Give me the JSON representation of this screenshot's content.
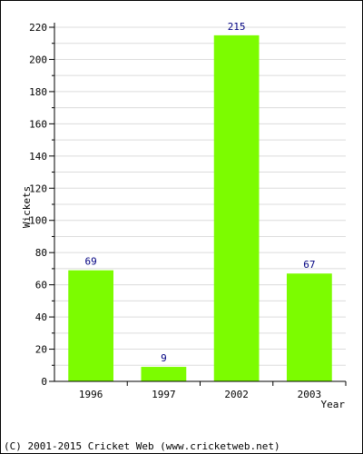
{
  "chart_data": {
    "type": "bar",
    "categories": [
      "1996",
      "1997",
      "2002",
      "2003"
    ],
    "values": [
      69,
      9,
      215,
      67
    ],
    "data_labels": [
      "69",
      "9",
      "215",
      "67"
    ],
    "xlabel": "Year",
    "ylabel": "Wickets",
    "ylim": [
      0,
      220
    ],
    "y_ticks": [
      "0",
      "20",
      "40",
      "60",
      "80",
      "100",
      "120",
      "140",
      "160",
      "180",
      "200",
      "220"
    ],
    "grid": true,
    "bar_color": "#7cfc00",
    "label_color": "#000080"
  },
  "footer": {
    "copyright": "(C) 2001-2015 Cricket Web (www.cricketweb.net)"
  }
}
